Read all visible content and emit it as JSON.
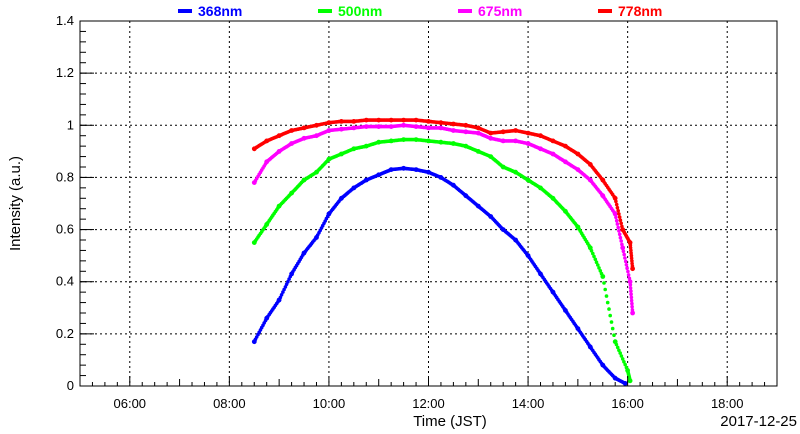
{
  "chart_data": {
    "type": "scatter",
    "title": "",
    "xlabel": "Time (JST)",
    "ylabel": "Intensity (a.u.)",
    "date_label": "2017-12-25",
    "xlim": [
      5.0,
      19.0
    ],
    "ylim": [
      0,
      1.4
    ],
    "x_ticks": [
      "06:00",
      "08:00",
      "10:00",
      "12:00",
      "14:00",
      "16:00",
      "18:00"
    ],
    "y_ticks": [
      "0",
      "0.2",
      "0.4",
      "0.6",
      "0.8",
      "1",
      "1.2",
      "1.4"
    ],
    "grid": true,
    "legend_position": "top",
    "series": [
      {
        "name": "368nm",
        "color": "#0000ff",
        "x": [
          8.5,
          8.75,
          9.0,
          9.25,
          9.5,
          9.75,
          10.0,
          10.25,
          10.5,
          10.75,
          11.0,
          11.25,
          11.5,
          11.75,
          12.0,
          12.25,
          12.5,
          12.75,
          13.0,
          13.25,
          13.5,
          13.75,
          14.0,
          14.25,
          14.5,
          14.75,
          15.0,
          15.25,
          15.5,
          15.75,
          15.95
        ],
        "y": [
          0.17,
          0.26,
          0.33,
          0.43,
          0.51,
          0.57,
          0.66,
          0.72,
          0.76,
          0.79,
          0.81,
          0.83,
          0.835,
          0.83,
          0.82,
          0.8,
          0.77,
          0.73,
          0.69,
          0.65,
          0.6,
          0.56,
          0.5,
          0.43,
          0.36,
          0.29,
          0.22,
          0.15,
          0.08,
          0.03,
          0.01
        ]
      },
      {
        "name": "500nm",
        "color": "#00ff00",
        "x": [
          8.5,
          8.75,
          9.0,
          9.25,
          9.5,
          9.75,
          10.0,
          10.25,
          10.5,
          10.75,
          11.0,
          11.25,
          11.5,
          11.75,
          12.0,
          12.25,
          12.5,
          12.75,
          13.0,
          13.25,
          13.5,
          13.75,
          14.0,
          14.25,
          14.5,
          14.75,
          15.0,
          15.25,
          15.5,
          15.75,
          16.0,
          16.05
        ],
        "y": [
          0.55,
          0.62,
          0.69,
          0.74,
          0.79,
          0.82,
          0.87,
          0.89,
          0.91,
          0.92,
          0.935,
          0.94,
          0.945,
          0.945,
          0.94,
          0.935,
          0.93,
          0.92,
          0.9,
          0.88,
          0.84,
          0.82,
          0.79,
          0.76,
          0.72,
          0.67,
          0.61,
          0.53,
          0.42,
          0.17,
          0.06,
          0.02
        ]
      },
      {
        "name": "675nm",
        "color": "#ff00ff",
        "x": [
          8.5,
          8.75,
          9.0,
          9.25,
          9.5,
          9.75,
          10.0,
          10.25,
          10.5,
          10.75,
          11.0,
          11.25,
          11.5,
          11.75,
          12.0,
          12.25,
          12.5,
          12.75,
          13.0,
          13.25,
          13.5,
          13.75,
          14.0,
          14.25,
          14.5,
          14.75,
          15.0,
          15.25,
          15.5,
          15.75,
          15.9,
          16.05,
          16.1
        ],
        "y": [
          0.78,
          0.86,
          0.9,
          0.93,
          0.95,
          0.96,
          0.98,
          0.985,
          0.99,
          0.995,
          0.995,
          0.995,
          1.0,
          0.995,
          0.99,
          0.99,
          0.98,
          0.975,
          0.97,
          0.95,
          0.94,
          0.94,
          0.93,
          0.91,
          0.89,
          0.86,
          0.83,
          0.79,
          0.73,
          0.66,
          0.53,
          0.4,
          0.28
        ]
      },
      {
        "name": "778nm",
        "color": "#ff0000",
        "x": [
          8.5,
          8.75,
          9.0,
          9.25,
          9.5,
          9.75,
          10.0,
          10.25,
          10.5,
          10.75,
          11.0,
          11.25,
          11.5,
          11.75,
          12.0,
          12.25,
          12.5,
          12.75,
          13.0,
          13.25,
          13.5,
          13.75,
          14.0,
          14.25,
          14.5,
          14.75,
          15.0,
          15.25,
          15.5,
          15.75,
          15.9,
          16.05,
          16.1
        ],
        "y": [
          0.91,
          0.94,
          0.96,
          0.98,
          0.99,
          1.0,
          1.01,
          1.015,
          1.015,
          1.02,
          1.02,
          1.02,
          1.02,
          1.02,
          1.015,
          1.01,
          1.005,
          1.0,
          0.99,
          0.97,
          0.975,
          0.98,
          0.97,
          0.96,
          0.94,
          0.92,
          0.89,
          0.85,
          0.79,
          0.72,
          0.6,
          0.55,
          0.45
        ]
      }
    ]
  }
}
